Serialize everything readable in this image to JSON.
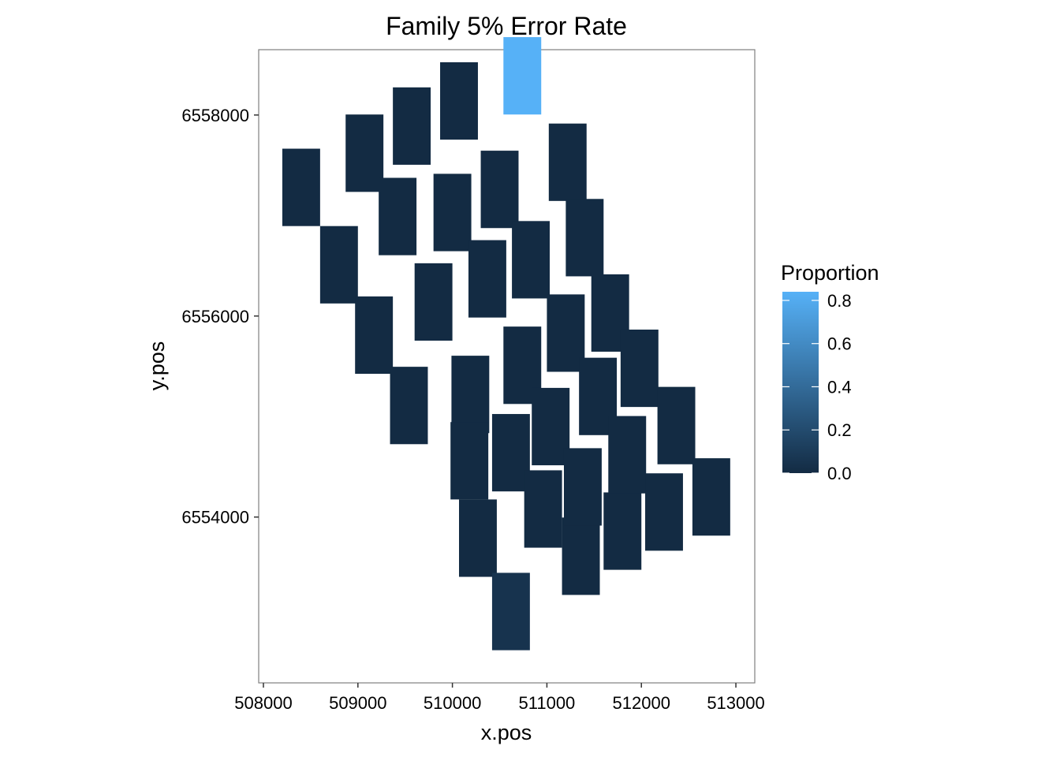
{
  "chart_data": {
    "type": "heatmap",
    "title": "Family 5% Error Rate",
    "xlabel": "x.pos",
    "ylabel": "y.pos",
    "xlim": [
      507950,
      513200
    ],
    "ylim": [
      6552350,
      6558650
    ],
    "x_ticks": [
      508000,
      509000,
      510000,
      511000,
      512000,
      513000
    ],
    "y_ticks": [
      6554000,
      6556000,
      6558000
    ],
    "tile_width": 400,
    "tile_height": 770,
    "grid": false,
    "legend": {
      "title": "Proportion",
      "position": "right",
      "ticks": [
        0.0,
        0.2,
        0.4,
        0.6,
        0.8
      ],
      "low_color": "#132B43",
      "high_color": "#56B1F7",
      "range": [
        0.0,
        0.84
      ]
    },
    "tiles": [
      {
        "x": 508400,
        "y": 6557280,
        "value": 0.0
      },
      {
        "x": 508800,
        "y": 6556510,
        "value": 0.0
      },
      {
        "x": 509070,
        "y": 6557620,
        "value": 0.0
      },
      {
        "x": 509170,
        "y": 6555810,
        "value": 0.0
      },
      {
        "x": 509420,
        "y": 6556990,
        "value": 0.0
      },
      {
        "x": 509570,
        "y": 6557890,
        "value": 0.0
      },
      {
        "x": 509540,
        "y": 6555110,
        "value": 0.0
      },
      {
        "x": 509800,
        "y": 6556140,
        "value": 0.0
      },
      {
        "x": 510000,
        "y": 6557030,
        "value": 0.0
      },
      {
        "x": 510070,
        "y": 6558140,
        "value": 0.0
      },
      {
        "x": 510190,
        "y": 6555220,
        "value": 0.0
      },
      {
        "x": 510180,
        "y": 6554560,
        "value": 0.0
      },
      {
        "x": 510270,
        "y": 6553790,
        "value": 0.0
      },
      {
        "x": 510370,
        "y": 6556370,
        "value": 0.0
      },
      {
        "x": 510500,
        "y": 6557260,
        "value": 0.0
      },
      {
        "x": 510620,
        "y": 6554640,
        "value": 0.0
      },
      {
        "x": 510620,
        "y": 6553060,
        "value": 0.05
      },
      {
        "x": 510740,
        "y": 6558390,
        "value": 0.84
      },
      {
        "x": 510740,
        "y": 6555510,
        "value": 0.0
      },
      {
        "x": 510830,
        "y": 6556560,
        "value": 0.0
      },
      {
        "x": 510960,
        "y": 6554080,
        "value": 0.0
      },
      {
        "x": 511040,
        "y": 6554900,
        "value": 0.0
      },
      {
        "x": 511200,
        "y": 6555830,
        "value": 0.0
      },
      {
        "x": 511220,
        "y": 6557530,
        "value": 0.0
      },
      {
        "x": 511360,
        "y": 6553610,
        "value": 0.0
      },
      {
        "x": 511380,
        "y": 6554300,
        "value": 0.0
      },
      {
        "x": 511400,
        "y": 6556780,
        "value": 0.0
      },
      {
        "x": 511540,
        "y": 6555200,
        "value": 0.0
      },
      {
        "x": 511670,
        "y": 6556030,
        "value": 0.0
      },
      {
        "x": 511800,
        "y": 6553860,
        "value": 0.0
      },
      {
        "x": 511850,
        "y": 6554620,
        "value": 0.0
      },
      {
        "x": 511980,
        "y": 6555480,
        "value": 0.0
      },
      {
        "x": 512240,
        "y": 6554050,
        "value": 0.0
      },
      {
        "x": 512370,
        "y": 6554910,
        "value": 0.0
      },
      {
        "x": 512740,
        "y": 6554200,
        "value": 0.0
      }
    ]
  }
}
